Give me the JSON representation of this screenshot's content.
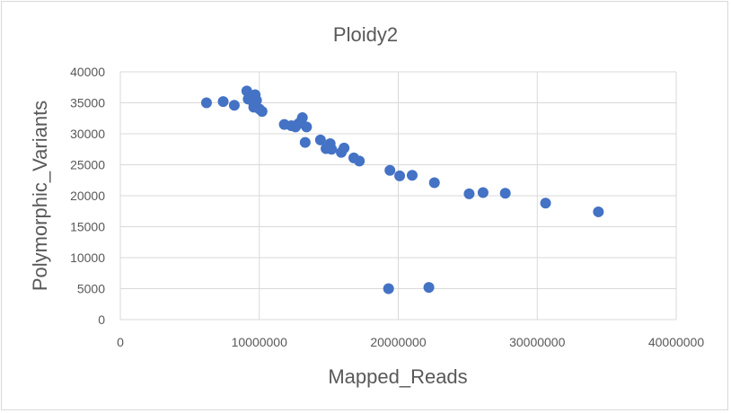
{
  "chart_data": {
    "type": "scatter",
    "title": "Ploidy2",
    "xlabel": "Mapped_Reads",
    "ylabel": "Polymorphic_Variants",
    "xlim": [
      0,
      40000000
    ],
    "ylim": [
      0,
      40000
    ],
    "x_ticks": [
      0,
      10000000,
      20000000,
      30000000,
      40000000
    ],
    "x_tick_labels": [
      "0",
      "10000000",
      "20000000",
      "30000000",
      "40000000"
    ],
    "y_ticks": [
      0,
      5000,
      10000,
      15000,
      20000,
      25000,
      30000,
      35000,
      40000
    ],
    "y_tick_labels": [
      "0",
      "5000",
      "10000",
      "15000",
      "20000",
      "25000",
      "30000",
      "35000",
      "40000"
    ],
    "grid": true,
    "legend": false,
    "marker_color": "#4472c4",
    "points": [
      {
        "x": 6200000,
        "y": 35000
      },
      {
        "x": 7400000,
        "y": 35200
      },
      {
        "x": 8200000,
        "y": 34600
      },
      {
        "x": 9100000,
        "y": 36900
      },
      {
        "x": 9200000,
        "y": 35600
      },
      {
        "x": 9500000,
        "y": 35300
      },
      {
        "x": 9700000,
        "y": 36300
      },
      {
        "x": 9700000,
        "y": 34800
      },
      {
        "x": 9800000,
        "y": 35400
      },
      {
        "x": 9600000,
        "y": 34300
      },
      {
        "x": 10000000,
        "y": 34000
      },
      {
        "x": 10200000,
        "y": 33600
      },
      {
        "x": 11800000,
        "y": 31500
      },
      {
        "x": 12300000,
        "y": 31300
      },
      {
        "x": 12600000,
        "y": 31100
      },
      {
        "x": 12800000,
        "y": 31600
      },
      {
        "x": 13000000,
        "y": 32000
      },
      {
        "x": 13100000,
        "y": 32600
      },
      {
        "x": 13300000,
        "y": 28600
      },
      {
        "x": 13400000,
        "y": 31100
      },
      {
        "x": 14400000,
        "y": 29000
      },
      {
        "x": 14800000,
        "y": 27600
      },
      {
        "x": 15100000,
        "y": 28400
      },
      {
        "x": 15200000,
        "y": 27500
      },
      {
        "x": 15900000,
        "y": 27000
      },
      {
        "x": 16100000,
        "y": 27700
      },
      {
        "x": 16800000,
        "y": 26100
      },
      {
        "x": 17200000,
        "y": 25600
      },
      {
        "x": 19400000,
        "y": 24100
      },
      {
        "x": 20100000,
        "y": 23200
      },
      {
        "x": 21000000,
        "y": 23300
      },
      {
        "x": 22600000,
        "y": 22100
      },
      {
        "x": 25100000,
        "y": 20300
      },
      {
        "x": 26100000,
        "y": 20500
      },
      {
        "x": 27700000,
        "y": 20400
      },
      {
        "x": 30600000,
        "y": 18800
      },
      {
        "x": 34400000,
        "y": 17400
      },
      {
        "x": 19300000,
        "y": 5000
      },
      {
        "x": 22200000,
        "y": 5200
      }
    ]
  }
}
